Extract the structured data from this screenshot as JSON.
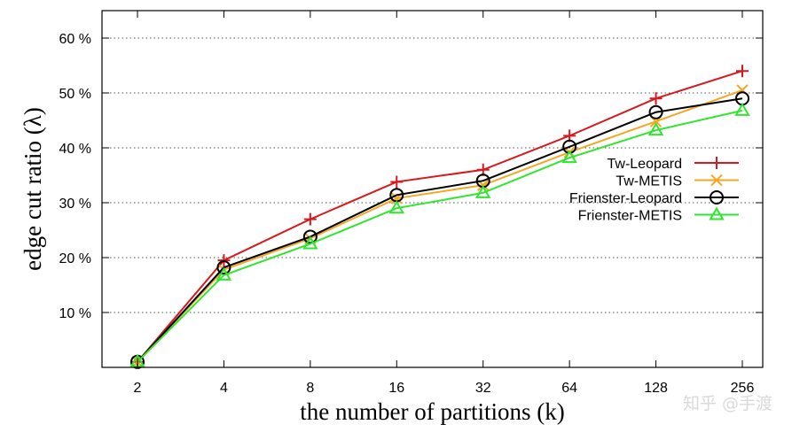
{
  "chart_data": {
    "type": "line",
    "title": "",
    "xlabel": "the number of partitions (k)",
    "ylabel": "edge cut ratio (λ)",
    "categories": [
      "2",
      "4",
      "8",
      "16",
      "32",
      "64",
      "128",
      "256"
    ],
    "y_ticks": [
      10,
      20,
      30,
      40,
      50,
      60
    ],
    "y_tick_labels": [
      "10 %",
      "20 %",
      "30 %",
      "40 %",
      "50 %",
      "60 %"
    ],
    "ylim": [
      0,
      65
    ],
    "grid": "horizontal dotted",
    "legend_position": "right",
    "series": [
      {
        "name": "Tw-Leopard",
        "color": "#d7191c",
        "marker": "plus",
        "values": [
          1.0,
          19.5,
          27.0,
          33.8,
          36.0,
          42.2,
          49.0,
          54.0
        ]
      },
      {
        "name": "Tw-METIS",
        "color": "#f5a623",
        "marker": "cross",
        "values": [
          1.0,
          17.8,
          23.5,
          30.8,
          33.2,
          39.2,
          44.8,
          50.5
        ]
      },
      {
        "name": "Frienster-Leopard",
        "color": "#000000",
        "marker": "circle",
        "values": [
          1.0,
          18.2,
          23.8,
          31.4,
          34.0,
          40.2,
          46.5,
          49.0
        ]
      },
      {
        "name": "Frienster-METIS",
        "color": "#2ee62e",
        "marker": "triangle",
        "values": [
          1.0,
          16.8,
          22.5,
          29.0,
          31.8,
          38.2,
          43.2,
          46.8
        ]
      }
    ]
  },
  "watermark": "知乎 @手渡"
}
